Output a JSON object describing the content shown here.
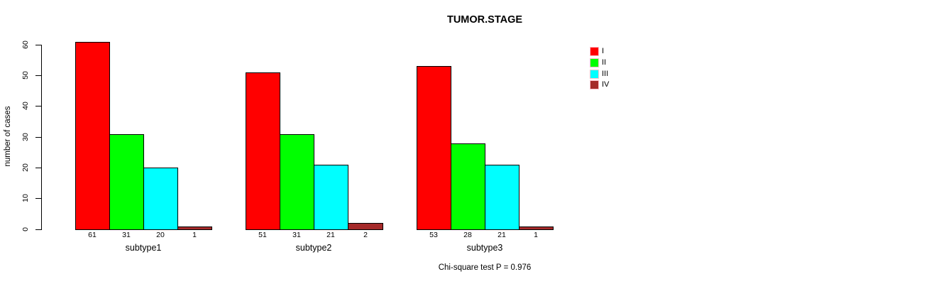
{
  "window": {
    "background": "#ffffff",
    "text_color": "#000000"
  },
  "chart_data": {
    "type": "bar",
    "title": "TUMOR.STAGE",
    "xlabel": "",
    "ylabel": "number of cases",
    "ylim": [
      0,
      60
    ],
    "yticks": [
      0,
      10,
      20,
      30,
      40,
      50,
      60
    ],
    "grid": false,
    "categories": [
      "subtype1",
      "subtype2",
      "subtype3"
    ],
    "series": [
      {
        "name": "I",
        "color": "#ff0000",
        "values": [
          61,
          51,
          53
        ]
      },
      {
        "name": "II",
        "color": "#00ff00",
        "values": [
          31,
          31,
          28
        ]
      },
      {
        "name": "III",
        "color": "#00ffff",
        "values": [
          20,
          21,
          21
        ]
      },
      {
        "name": "IV",
        "color": "#a52a2a",
        "values": [
          1,
          2,
          1
        ]
      }
    ],
    "value_labels": [
      [
        61,
        31,
        20,
        1
      ],
      [
        51,
        31,
        21,
        2
      ],
      [
        53,
        28,
        21,
        1
      ]
    ],
    "legend": {
      "position": "right",
      "entries": [
        "I",
        "II",
        "III",
        "IV"
      ],
      "swatch_border_color": "#ffc0cb"
    },
    "annotation": "Chi-square test P = 0.976",
    "axis_color": "#000000",
    "bar_border_color": "#000000"
  }
}
